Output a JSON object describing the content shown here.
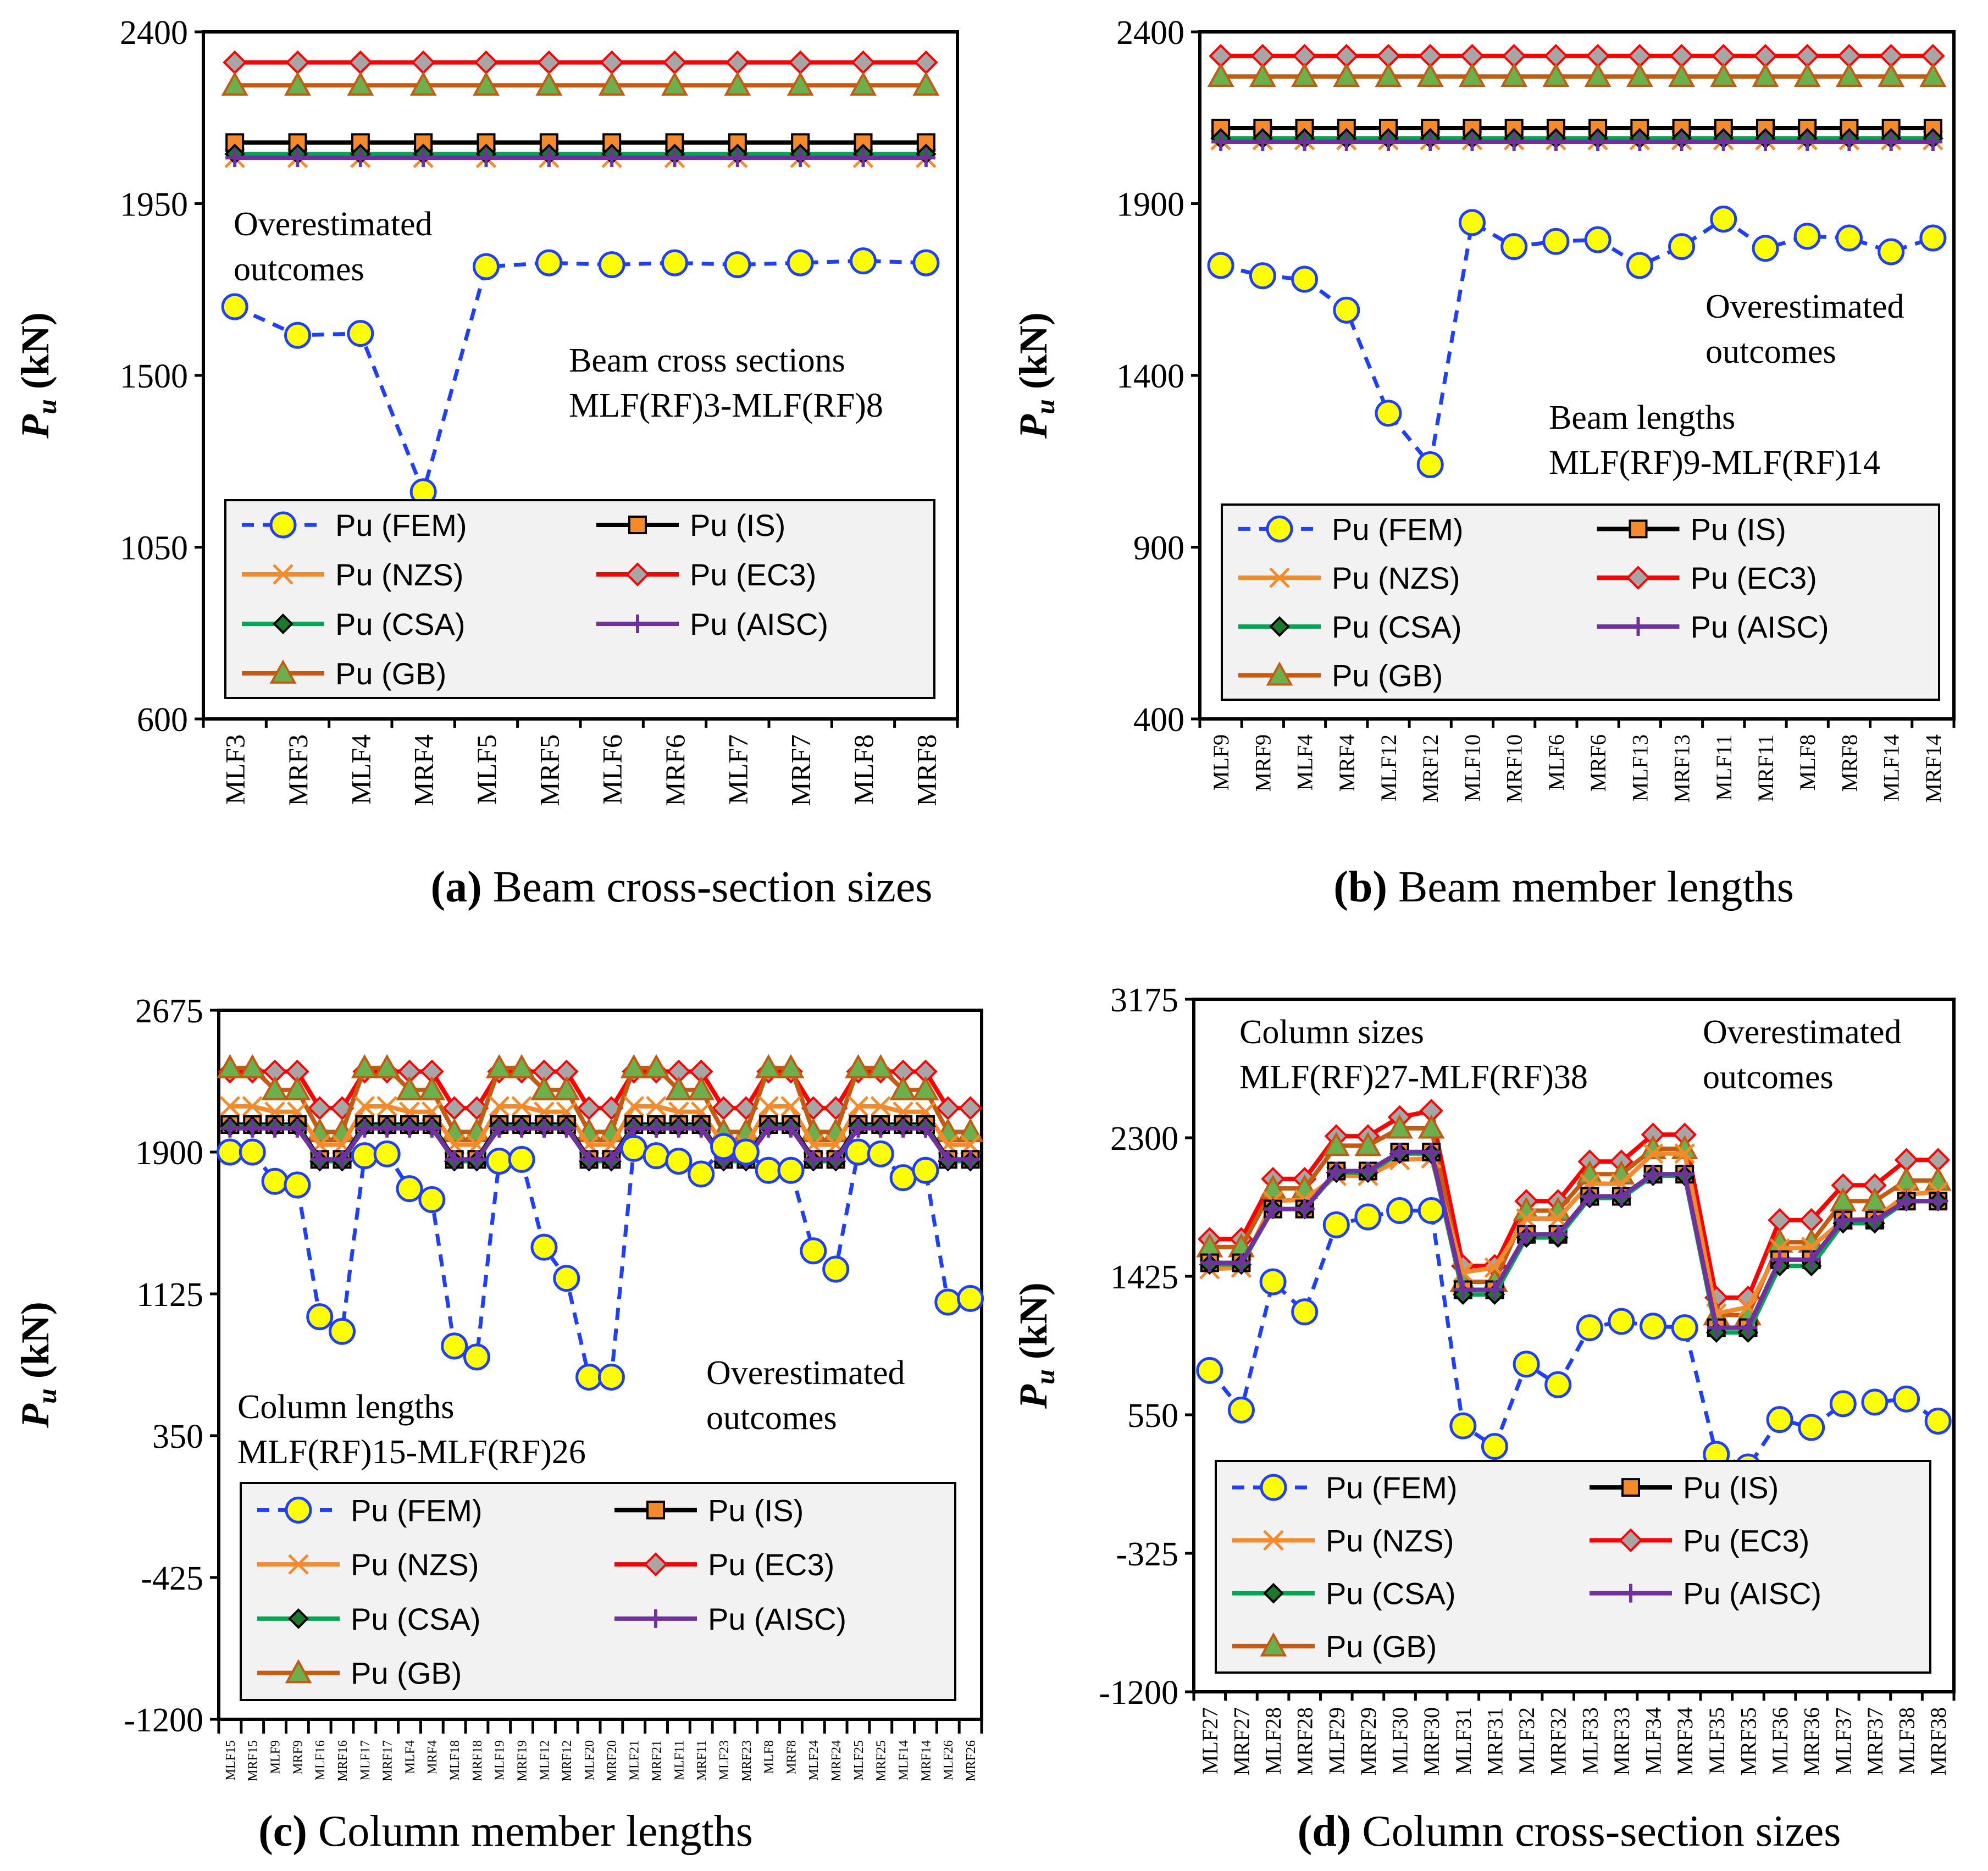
{
  "chart_data": [
    {
      "type": "line",
      "panel": "a",
      "caption_label": "(a)",
      "caption_text": " Beam cross-section sizes",
      "ylabel": "Pu (kN)",
      "ylim": [
        600,
        2400
      ],
      "yticks": [
        "2400",
        "1950",
        "1500",
        "1050",
        "600"
      ],
      "categories": [
        "MLF3",
        "MRF3",
        "MLF4",
        "MRF4",
        "MLF5",
        "MRF5",
        "MLF6",
        "MRF6",
        "MLF7",
        "MRF7",
        "MLF8",
        "MRF8"
      ],
      "annotations": [
        "Overestimated",
        "outcomes",
        "Beam cross sections",
        "MLF(RF)3-MLF(RF)8"
      ],
      "series": [
        {
          "name": "Pu (FEM)",
          "values": [
            1680,
            1605,
            1610,
            1195,
            1785,
            1795,
            1790,
            1795,
            1790,
            1795,
            1800,
            1795
          ]
        },
        {
          "name": "Pu (IS)",
          "values": [
            2110,
            2110,
            2110,
            2110,
            2110,
            2110,
            2110,
            2110,
            2110,
            2110,
            2110,
            2110
          ]
        },
        {
          "name": "Pu (NZS)",
          "values": [
            2070,
            2070,
            2070,
            2070,
            2070,
            2070,
            2070,
            2070,
            2070,
            2070,
            2070,
            2070
          ]
        },
        {
          "name": "Pu (EC3)",
          "values": [
            2320,
            2320,
            2320,
            2320,
            2320,
            2320,
            2320,
            2320,
            2320,
            2320,
            2320,
            2320
          ]
        },
        {
          "name": "Pu (CSA)",
          "values": [
            2080,
            2080,
            2080,
            2080,
            2080,
            2080,
            2080,
            2080,
            2080,
            2080,
            2080,
            2080
          ]
        },
        {
          "name": "Pu (AISC)",
          "values": [
            2070,
            2070,
            2070,
            2070,
            2070,
            2070,
            2070,
            2070,
            2070,
            2070,
            2070,
            2070
          ]
        },
        {
          "name": "Pu (GB)",
          "values": [
            2260,
            2260,
            2260,
            2260,
            2260,
            2260,
            2260,
            2260,
            2260,
            2260,
            2260,
            2260
          ]
        }
      ]
    },
    {
      "type": "line",
      "panel": "b",
      "caption_label": "(b)",
      "caption_text": " Beam member lengths",
      "ylabel": "Pu (kN)",
      "ylim": [
        400,
        2400
      ],
      "yticks": [
        "2400",
        "1900",
        "1400",
        "900",
        "400"
      ],
      "categories": [
        "MLF9",
        "MRF9",
        "MLF4",
        "MRF4",
        "MLF12",
        "MRF12",
        "MLF10",
        "MRF10",
        "MLF6",
        "MRF6",
        "MLF13",
        "MRF13",
        "MLF11",
        "MRF11",
        "MLF8",
        "MRF8",
        "MLF14",
        "MRF14"
      ],
      "annotations": [
        "Overestimated",
        "outcomes",
        "Beam lengths",
        "MLF(RF)9-MLF(RF)14"
      ],
      "series": [
        {
          "name": "Pu (FEM)",
          "values": [
            1720,
            1690,
            1680,
            1590,
            1290,
            1140,
            1845,
            1775,
            1790,
            1795,
            1720,
            1775,
            1855,
            1770,
            1805,
            1800,
            1760,
            1800
          ]
        },
        {
          "name": "Pu (IS)",
          "values": [
            2120,
            2120,
            2120,
            2120,
            2120,
            2120,
            2120,
            2120,
            2120,
            2120,
            2120,
            2120,
            2120,
            2120,
            2120,
            2120,
            2120,
            2120
          ]
        },
        {
          "name": "Pu (NZS)",
          "values": [
            2085,
            2085,
            2085,
            2085,
            2085,
            2085,
            2085,
            2085,
            2085,
            2085,
            2085,
            2085,
            2085,
            2085,
            2085,
            2085,
            2085,
            2085
          ]
        },
        {
          "name": "Pu (EC3)",
          "values": [
            2330,
            2330,
            2330,
            2330,
            2330,
            2330,
            2330,
            2330,
            2330,
            2330,
            2330,
            2330,
            2330,
            2330,
            2330,
            2330,
            2330,
            2330
          ]
        },
        {
          "name": "Pu (CSA)",
          "values": [
            2090,
            2090,
            2090,
            2090,
            2090,
            2090,
            2090,
            2090,
            2090,
            2090,
            2090,
            2090,
            2090,
            2090,
            2090,
            2090,
            2090,
            2090
          ]
        },
        {
          "name": "Pu (AISC)",
          "values": [
            2080,
            2080,
            2080,
            2080,
            2080,
            2080,
            2080,
            2080,
            2080,
            2080,
            2080,
            2080,
            2080,
            2080,
            2080,
            2080,
            2080,
            2080
          ]
        },
        {
          "name": "Pu (GB)",
          "values": [
            2270,
            2270,
            2270,
            2270,
            2270,
            2270,
            2270,
            2270,
            2270,
            2270,
            2270,
            2270,
            2270,
            2270,
            2270,
            2270,
            2270,
            2270
          ]
        }
      ]
    },
    {
      "type": "line",
      "panel": "c",
      "caption_label": "(c)",
      "caption_text": " Column member lengths",
      "ylabel": "Pu (kN)",
      "ylim": [
        -1200,
        2675
      ],
      "yticks": [
        "2675",
        "1900",
        "1125",
        "350",
        "-425",
        "-1200"
      ],
      "categories": [
        "MLF15",
        "MRF15",
        "MLF9",
        "MRF9",
        "MLF16",
        "MRF16",
        "MLF17",
        "MRF17",
        "MLF4",
        "MRF4",
        "MLF18",
        "MRF18",
        "MLF19",
        "MRF19",
        "MLF12",
        "MRF12",
        "MLF20",
        "MRF20",
        "MLF21",
        "MRF21",
        "MLF11",
        "MRF11",
        "MLF23",
        "MRF23",
        "MLF8",
        "MRF8",
        "MLF24",
        "MRF24",
        "MLF25",
        "MRF25",
        "MLF14",
        "MRF14",
        "MLF26",
        "MRF26"
      ],
      "annotations": [
        "Overestimated",
        "outcomes",
        "Column lengths",
        "MLF(RF)15-MLF(RF)26"
      ],
      "series": [
        {
          "name": "Pu (FEM)",
          "values": [
            1900,
            1900,
            1740,
            1720,
            1000,
            920,
            1880,
            1890,
            1700,
            1640,
            840,
            780,
            1850,
            1860,
            1380,
            1210,
            670,
            670,
            1920,
            1880,
            1850,
            1780,
            1930,
            1900,
            1800,
            1800,
            1360,
            1260,
            1900,
            1890,
            1760,
            1800,
            1080,
            1100
          ]
        },
        {
          "name": "Pu (IS)",
          "values": [
            2050,
            2050,
            2050,
            2050,
            1860,
            1860,
            2050,
            2050,
            2050,
            2050,
            1860,
            1860,
            2050,
            2050,
            2050,
            2050,
            1860,
            1860,
            2050,
            2050,
            2050,
            2050,
            1860,
            1860,
            2050,
            2050,
            1860,
            1860,
            2050,
            2050,
            2050,
            2050,
            1860,
            1860
          ]
        },
        {
          "name": "Pu (NZS)",
          "values": [
            2150,
            2150,
            2120,
            2120,
            1940,
            1940,
            2150,
            2150,
            2120,
            2120,
            1940,
            1940,
            2150,
            2150,
            2120,
            2120,
            1940,
            1940,
            2150,
            2150,
            2120,
            2120,
            1940,
            1940,
            2150,
            2150,
            1940,
            1940,
            2150,
            2150,
            2120,
            2120,
            1940,
            1940
          ]
        },
        {
          "name": "Pu (EC3)",
          "values": [
            2340,
            2340,
            2340,
            2340,
            2140,
            2140,
            2340,
            2340,
            2340,
            2340,
            2140,
            2140,
            2340,
            2340,
            2340,
            2340,
            2140,
            2140,
            2340,
            2340,
            2340,
            2340,
            2140,
            2140,
            2340,
            2340,
            2140,
            2140,
            2340,
            2340,
            2340,
            2340,
            2140,
            2140
          ]
        },
        {
          "name": "Pu (CSA)",
          "values": [
            2040,
            2040,
            2040,
            2040,
            1850,
            1850,
            2040,
            2040,
            2040,
            2040,
            1850,
            1850,
            2040,
            2040,
            2040,
            2040,
            1850,
            1850,
            2040,
            2040,
            2040,
            2040,
            1850,
            1850,
            2040,
            2040,
            1850,
            1850,
            2040,
            2040,
            2040,
            2040,
            1850,
            1850
          ]
        },
        {
          "name": "Pu (AISC)",
          "values": [
            2030,
            2030,
            2030,
            2030,
            1860,
            1860,
            2030,
            2030,
            2030,
            2030,
            1860,
            1860,
            2030,
            2030,
            2030,
            2030,
            1860,
            1860,
            2030,
            2030,
            2030,
            2030,
            1860,
            1860,
            2030,
            2030,
            1860,
            1860,
            2030,
            2030,
            2030,
            2030,
            1860,
            1860
          ]
        },
        {
          "name": "Pu (GB)",
          "values": [
            2360,
            2360,
            2240,
            2240,
            2010,
            2010,
            2360,
            2360,
            2240,
            2240,
            2010,
            2010,
            2360,
            2360,
            2240,
            2240,
            2010,
            2010,
            2360,
            2360,
            2240,
            2240,
            2010,
            2010,
            2360,
            2360,
            2010,
            2010,
            2360,
            2360,
            2240,
            2240,
            2010,
            2010
          ]
        }
      ]
    },
    {
      "type": "line",
      "panel": "d",
      "caption_label": "(d)",
      "caption_text": " Column cross-section sizes",
      "ylabel": "Pu (kN)",
      "ylim": [
        -1200,
        3175
      ],
      "yticks": [
        "3175",
        "2300",
        "1425",
        "550",
        "-325",
        "-1200"
      ],
      "categories": [
        "MLF27",
        "MRF27",
        "MLF28",
        "MRF28",
        "MLF29",
        "MRF29",
        "MLF30",
        "MRF30",
        "MLF31",
        "MRF31",
        "MLF32",
        "MRF32",
        "MLF33",
        "MRF33",
        "MLF34",
        "MRF34",
        "MLF35",
        "MRF35",
        "MLF36",
        "MRF36",
        "MLF37",
        "MRF37",
        "MLF38",
        "MRF38"
      ],
      "annotations": [
        "Column sizes",
        "MLF(RF)27-MLF(RF)38",
        "Overestimated",
        "outcomes"
      ],
      "series": [
        {
          "name": "Pu (FEM)",
          "values": [
            830,
            580,
            1390,
            1200,
            1750,
            1800,
            1840,
            1840,
            480,
            350,
            870,
            740,
            1100,
            1140,
            1110,
            1100,
            300,
            220,
            520,
            470,
            620,
            630,
            650,
            510
          ]
        },
        {
          "name": "Pu (IS)",
          "values": [
            1510,
            1510,
            1850,
            1850,
            2090,
            2090,
            2210,
            2210,
            1340,
            1340,
            1690,
            1690,
            1930,
            1930,
            2070,
            2070,
            1100,
            1100,
            1530,
            1530,
            1780,
            1780,
            1900,
            1900
          ]
        },
        {
          "name": "Pu (NZS)",
          "values": [
            1470,
            1480,
            1900,
            1910,
            2060,
            2060,
            2160,
            2170,
            1450,
            1480,
            1790,
            1790,
            2010,
            2010,
            2200,
            2200,
            1190,
            1230,
            1600,
            1610,
            1780,
            1790,
            1940,
            1960
          ]
        },
        {
          "name": "Pu (EC3)",
          "values": [
            1660,
            1660,
            2040,
            2040,
            2310,
            2310,
            2430,
            2470,
            1490,
            1490,
            1900,
            1900,
            2150,
            2150,
            2320,
            2320,
            1290,
            1290,
            1780,
            1780,
            2000,
            2000,
            2160,
            2160
          ]
        },
        {
          "name": "Pu (CSA)",
          "values": [
            1500,
            1500,
            1850,
            1850,
            2080,
            2080,
            2200,
            2200,
            1310,
            1310,
            1670,
            1670,
            1920,
            1920,
            2060,
            2060,
            1070,
            1070,
            1490,
            1490,
            1760,
            1760,
            1900,
            1900
          ]
        },
        {
          "name": "Pu (AISC)",
          "values": [
            1510,
            1510,
            1850,
            1850,
            2090,
            2090,
            2210,
            2210,
            1340,
            1340,
            1690,
            1690,
            1930,
            1930,
            2070,
            2070,
            1100,
            1100,
            1530,
            1530,
            1780,
            1780,
            1900,
            1900
          ]
        },
        {
          "name": "Pu (GB)",
          "values": [
            1610,
            1610,
            1980,
            1980,
            2250,
            2250,
            2360,
            2360,
            1390,
            1390,
            1840,
            1840,
            2070,
            2070,
            2230,
            2230,
            1180,
            1180,
            1640,
            1640,
            1900,
            1900,
            2030,
            2030
          ]
        }
      ]
    }
  ]
}
